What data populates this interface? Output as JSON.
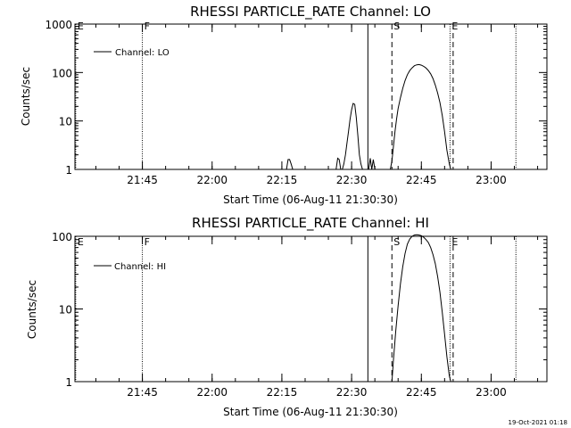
{
  "chart_data": [
    {
      "type": "line",
      "title": "RHESSI PARTICLE_RATE Channel: LO",
      "xlabel": "Start Time (06-Aug-11 21:30:30)",
      "ylabel": "Counts/sec",
      "y_scale": "log",
      "ylim": [
        1,
        1000
      ],
      "y_ticks": [
        {
          "value": 1,
          "label": "1"
        },
        {
          "value": 10,
          "label": "10"
        },
        {
          "value": 100,
          "label": "100"
        },
        {
          "value": 1000,
          "label": "1000"
        }
      ],
      "xlim": [
        "21:30:30",
        "23:12:00"
      ],
      "x_ticks": [
        "21:45",
        "22:00",
        "22:15",
        "22:30",
        "22:45",
        "23:00"
      ],
      "legend": {
        "label": "Channel: LO",
        "placement": "top-left"
      },
      "markers": [
        {
          "time": "21:30:40",
          "style": "dotted",
          "label": "E"
        },
        {
          "time": "21:45:00",
          "style": "dotted",
          "label": "F"
        },
        {
          "time": "22:33:30",
          "style": "solid",
          "label": ""
        },
        {
          "time": "22:38:40",
          "style": "dashed",
          "label": "S"
        },
        {
          "time": "22:51:10",
          "style": "dotted",
          "label": "E"
        },
        {
          "time": "22:51:50",
          "style": "dashed",
          "label": ""
        },
        {
          "time": "23:05:20",
          "style": "dotted",
          "label": ""
        }
      ],
      "series": [
        {
          "x": [
            "22:16:00",
            "22:16:20",
            "22:16:40",
            "22:17:00",
            "22:17:20",
            "22:26:40",
            "22:27:00",
            "22:27:20",
            "22:27:40",
            "22:28:00",
            "22:28:20",
            "22:28:40",
            "22:29:00",
            "22:29:20",
            "22:29:40",
            "22:30:00",
            "22:30:20",
            "22:30:40",
            "22:31:00",
            "22:31:20",
            "22:31:40",
            "22:32:00",
            "22:32:20",
            "22:32:40",
            "22:33:40",
            "22:34:00",
            "22:34:20",
            "22:34:40",
            "22:35:00",
            "22:38:20",
            "22:38:40",
            "22:39:00",
            "22:39:20",
            "22:39:40",
            "22:40:00",
            "22:40:30",
            "22:41:00",
            "22:41:30",
            "22:42:00",
            "22:42:30",
            "22:43:00",
            "22:43:30",
            "22:44:00",
            "22:44:30",
            "22:45:00",
            "22:45:30",
            "22:46:00",
            "22:46:30",
            "22:47:00",
            "22:47:30",
            "22:48:00",
            "22:48:30",
            "22:49:00",
            "22:49:30",
            "22:50:00",
            "22:50:30",
            "22:51:00",
            "22:51:20",
            "22:51:40"
          ],
          "y": [
            1,
            1.6,
            1.6,
            1.3,
            1,
            1,
            1.7,
            1.6,
            1,
            1,
            1.3,
            2,
            3.5,
            6,
            11,
            17,
            23,
            22,
            12,
            5,
            2,
            1.3,
            1,
            1,
            1,
            1.7,
            1,
            1.6,
            1,
            1,
            1.5,
            3,
            6,
            11,
            18,
            30,
            47,
            68,
            90,
            110,
            125,
            138,
            144,
            146,
            142,
            134,
            124,
            110,
            94,
            75,
            55,
            38,
            24,
            13,
            6,
            2.5,
            1.3,
            1,
            1
          ]
        }
      ]
    },
    {
      "type": "line",
      "title": "RHESSI PARTICLE_RATE Channel: HI",
      "xlabel": "Start Time (06-Aug-11 21:30:30)",
      "ylabel": "Counts/sec",
      "y_scale": "log",
      "ylim": [
        1,
        100
      ],
      "y_ticks": [
        {
          "value": 1,
          "label": "1"
        },
        {
          "value": 10,
          "label": "10"
        },
        {
          "value": 100,
          "label": "100"
        }
      ],
      "xlim": [
        "21:30:30",
        "23:12:00"
      ],
      "x_ticks": [
        "21:45",
        "22:00",
        "22:15",
        "22:30",
        "22:45",
        "23:00"
      ],
      "legend": {
        "label": "Channel: HI",
        "placement": "top-left"
      },
      "markers": [
        {
          "time": "21:30:40",
          "style": "dotted",
          "label": "E"
        },
        {
          "time": "21:45:00",
          "style": "dotted",
          "label": "F"
        },
        {
          "time": "22:33:30",
          "style": "solid",
          "label": ""
        },
        {
          "time": "22:38:40",
          "style": "dashed",
          "label": "S"
        },
        {
          "time": "22:51:10",
          "style": "dotted",
          "label": "E"
        },
        {
          "time": "22:51:50",
          "style": "dashed",
          "label": ""
        },
        {
          "time": "23:05:20",
          "style": "dotted",
          "label": ""
        }
      ],
      "series": [
        {
          "x": [
            "22:38:40",
            "22:39:00",
            "22:39:30",
            "22:40:00",
            "22:40:30",
            "22:41:00",
            "22:41:30",
            "22:42:00",
            "22:42:30",
            "22:43:00",
            "22:43:30",
            "22:44:00",
            "22:44:30",
            "22:45:00",
            "22:45:30",
            "22:46:00",
            "22:46:30",
            "22:47:00",
            "22:47:30",
            "22:48:00",
            "22:48:30",
            "22:49:00",
            "22:49:30",
            "22:50:00",
            "22:50:30",
            "22:51:00",
            "22:51:20"
          ],
          "y": [
            1,
            2,
            5,
            11,
            22,
            38,
            58,
            78,
            92,
            100,
            104,
            105,
            104,
            102,
            97,
            90,
            82,
            70,
            56,
            42,
            28,
            17,
            9,
            4.5,
            2.2,
            1.2,
            1
          ]
        }
      ]
    }
  ],
  "timestamp": "19-Oct-2021 01:18"
}
